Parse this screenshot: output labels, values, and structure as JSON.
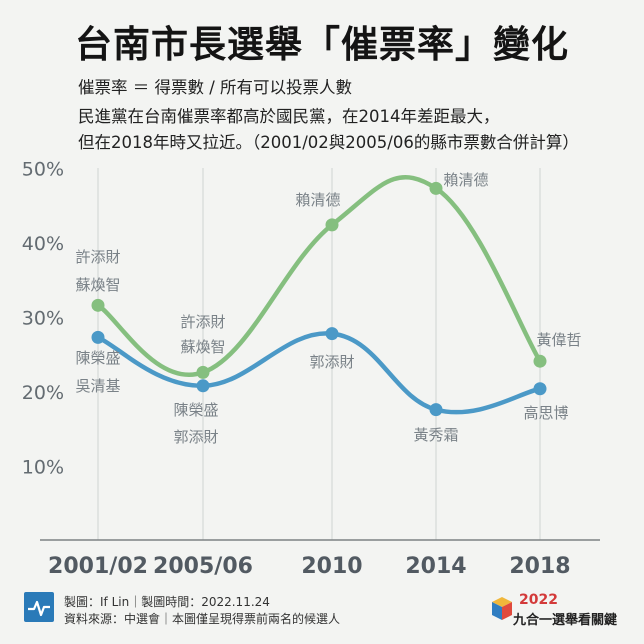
{
  "header": {
    "title": "台南市長選舉「催票率」變化",
    "formula": "催票率 ＝ 得票數 / 所有可以投票人數",
    "desc_line1": "民進黨在台南催票率都高於國民黨，在2014年差距最大，",
    "desc_line2": "但在2018年時又拉近。（2001/02與2005/06的縣市票數合併計算）"
  },
  "chart_data": {
    "type": "line",
    "categories": [
      "2001/02",
      "2005/06",
      "2010",
      "2014",
      "2018"
    ],
    "ylim": [
      0,
      50
    ],
    "yticks": [
      10,
      20,
      30,
      40,
      50
    ],
    "ytick_labels": [
      "10%",
      "20%",
      "30%",
      "40%",
      "50%"
    ],
    "grid": "vertical",
    "series": [
      {
        "color": "#85bf7f",
        "values": [
          31.5,
          22.5,
          42.3,
          47.2,
          24.0
        ],
        "labels": [
          [
            "許添財",
            "蘇煥智"
          ],
          [
            "許添財",
            "蘇煥智"
          ],
          [
            "賴清德"
          ],
          [
            "賴清德"
          ],
          [
            "黃偉哲"
          ]
        ]
      },
      {
        "color": "#4b99c7",
        "values": [
          27.2,
          20.7,
          27.7,
          17.5,
          20.3
        ],
        "labels": [
          [
            "陳榮盛",
            "吳清基"
          ],
          [
            "陳榮盛",
            "郭添財"
          ],
          [
            "郭添財"
          ],
          [
            "黃秀霜"
          ],
          [
            "高思博"
          ]
        ]
      }
    ]
  },
  "footer": {
    "line1": "製圖：If Lin｜製圖時間：2022.11.24",
    "line2": "資料來源：中選會｜本圖僅呈現得票前兩名的候選人",
    "brand_year": "2022",
    "brand_text": "九合一選舉看關鍵",
    "icon": "pulse-chart-icon",
    "logo": "cube-logo"
  }
}
